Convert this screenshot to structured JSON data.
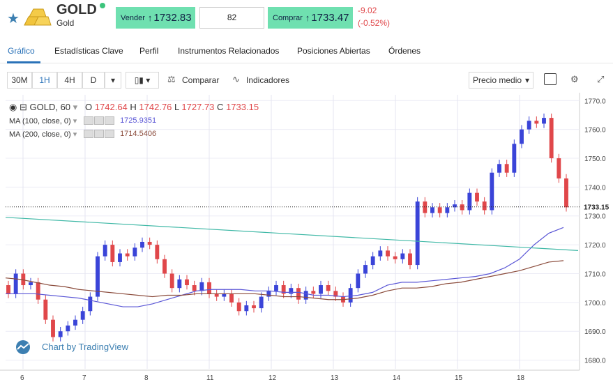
{
  "header": {
    "symbol": "GOLD",
    "name": "Gold",
    "sell_label": "Vender",
    "sell_price": "1732.83",
    "quantity": "82",
    "buy_label": "Comprar",
    "buy_price": "1733.47",
    "change_abs": "-9.02",
    "change_pct": "(-0.52%)",
    "colors": {
      "price_button": "#6fe0b0",
      "negative": "#e0474a",
      "accent": "#2a72b8"
    }
  },
  "tabs": [
    "Gráfico",
    "Estadísticas Clave",
    "Perfil",
    "Instrumentos Relacionados",
    "Posiciones Abiertas",
    "Órdenes"
  ],
  "toolbar": {
    "intervals": [
      "30M",
      "1H",
      "4H",
      "D"
    ],
    "active_interval": "1H",
    "compare_label": "Comparar",
    "indicators_label": "Indicadores",
    "price_type": "Precio medio",
    "icons": [
      "chevron-down-icon",
      "candlestick-icon",
      "compare-icon",
      "indicators-icon",
      "gear-icon",
      "fullscreen-icon"
    ]
  },
  "legend": {
    "title": "GOLD, 60",
    "o_label": "O",
    "o_val": "1742.64",
    "h_label": "H",
    "h_val": "1742.76",
    "l_label": "L",
    "l_val": "1727.73",
    "c_label": "C",
    "c_val": "1733.15",
    "ma100_label": "MA (100, close, 0)",
    "ma100_val": "1725.9351",
    "ma200_label": "MA (200, close, 0)",
    "ma200_val": "1714.5406"
  },
  "watermark": "Chart by TradingView",
  "chart_data": {
    "type": "candlestick",
    "x_ticks": [
      "6",
      "7",
      "8",
      "11",
      "12",
      "13",
      "14",
      "15",
      "18"
    ],
    "y_ticks": [
      1680,
      1690,
      1700,
      1710,
      1720,
      1730,
      1740,
      1750,
      1760,
      1770
    ],
    "ylim": [
      1677,
      1772
    ],
    "last_price": "1733.15",
    "series": [
      {
        "name": "MA (100, close, 0)",
        "color": "#5a56d6",
        "values": [
          1703,
          1703,
          1703,
          1702.5,
          1702,
          1701.5,
          1700.5,
          1699.5,
          1698.5,
          1698.5,
          1699.5,
          1701,
          1702.5,
          1704,
          1704.5,
          1704.5,
          1704.5,
          1704,
          1704,
          1703.5,
          1703.5,
          1702.5,
          1702.5,
          1702,
          1702.5,
          1703.5,
          1706,
          1707,
          1707,
          1707.5,
          1708,
          1708.5,
          1709,
          1710,
          1712,
          1715,
          1720,
          1724,
          1726
        ]
      },
      {
        "name": "MA (200, close, 0)",
        "color": "#8a4a3a",
        "values": [
          1708.5,
          1708,
          1707,
          1706,
          1705.5,
          1704.5,
          1704,
          1703.5,
          1703,
          1702.5,
          1702,
          1702.5,
          1702.5,
          1703,
          1703,
          1703,
          1703,
          1703,
          1702.5,
          1702,
          1702,
          1701.5,
          1701,
          1701,
          1701.5,
          1702.5,
          1704,
          1705,
          1705,
          1705.5,
          1706.5,
          1707,
          1708,
          1709,
          1710,
          1711,
          1712.5,
          1714,
          1714.5
        ]
      },
      {
        "name": "Trendline",
        "color": "#3fb8a6",
        "values_start_end": [
          1729.5,
          1718
        ]
      }
    ],
    "candles": [
      [
        1706,
        1703
      ],
      [
        1703,
        1710
      ],
      [
        1710,
        1706
      ],
      [
        1706,
        1707
      ],
      [
        1707,
        1701
      ],
      [
        1701,
        1694
      ],
      [
        1694,
        1688
      ],
      [
        1688,
        1690
      ],
      [
        1690,
        1692
      ],
      [
        1692,
        1694
      ],
      [
        1694,
        1697
      ],
      [
        1697,
        1702
      ],
      [
        1702,
        1716
      ],
      [
        1716,
        1720
      ],
      [
        1720,
        1714
      ],
      [
        1714,
        1717
      ],
      [
        1717,
        1716
      ],
      [
        1716,
        1719
      ],
      [
        1719,
        1721
      ],
      [
        1721,
        1720
      ],
      [
        1720,
        1715
      ],
      [
        1715,
        1710
      ],
      [
        1710,
        1705
      ],
      [
        1705,
        1708
      ],
      [
        1708,
        1706
      ],
      [
        1706,
        1704
      ],
      [
        1704,
        1707
      ],
      [
        1707,
        1703
      ],
      [
        1703,
        1702
      ],
      [
        1702,
        1703
      ],
      [
        1703,
        1700
      ],
      [
        1700,
        1697
      ],
      [
        1697,
        1699
      ],
      [
        1699,
        1698
      ],
      [
        1698,
        1702
      ],
      [
        1702,
        1704
      ],
      [
        1704,
        1706
      ],
      [
        1706,
        1703
      ],
      [
        1703,
        1705
      ],
      [
        1705,
        1701
      ],
      [
        1701,
        1704
      ],
      [
        1704,
        1703
      ],
      [
        1703,
        1706
      ],
      [
        1706,
        1704
      ],
      [
        1704,
        1702
      ],
      [
        1702,
        1700
      ],
      [
        1700,
        1705
      ],
      [
        1705,
        1710
      ],
      [
        1710,
        1713
      ],
      [
        1713,
        1716
      ],
      [
        1716,
        1718
      ],
      [
        1718,
        1716
      ],
      [
        1716,
        1715
      ],
      [
        1715,
        1717
      ],
      [
        1717,
        1713
      ],
      [
        1713,
        1735
      ],
      [
        1735,
        1731
      ],
      [
        1731,
        1733
      ],
      [
        1733,
        1731
      ],
      [
        1731,
        1733
      ],
      [
        1733,
        1734
      ],
      [
        1734,
        1732
      ],
      [
        1732,
        1738
      ],
      [
        1738,
        1735
      ],
      [
        1735,
        1732
      ],
      [
        1732,
        1745
      ],
      [
        1745,
        1748
      ],
      [
        1748,
        1745
      ],
      [
        1745,
        1755
      ],
      [
        1755,
        1760
      ],
      [
        1760,
        1763
      ],
      [
        1763,
        1762
      ],
      [
        1762,
        1764
      ],
      [
        1764,
        1750
      ],
      [
        1750,
        1743
      ],
      [
        1743,
        1733
      ]
    ]
  }
}
